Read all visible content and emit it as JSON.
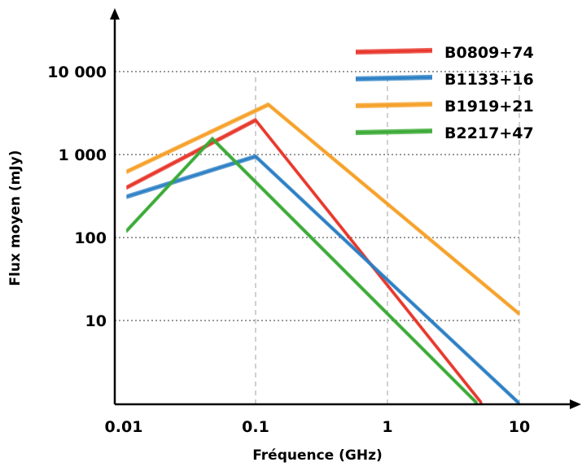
{
  "chart_data": {
    "type": "line",
    "xlabel": "Fréquence (GHz)",
    "ylabel": "Flux moyen (mJy)",
    "xscale": "log",
    "yscale": "log",
    "xlim": [
      0.01,
      20
    ],
    "ylim": [
      1,
      60000
    ],
    "x_ticks": [
      {
        "value": 0.01,
        "label": "0.01"
      },
      {
        "value": 0.1,
        "label": "0.1"
      },
      {
        "value": 1,
        "label": "1"
      },
      {
        "value": 10,
        "label": "10"
      }
    ],
    "y_ticks": [
      {
        "value": 10,
        "label": "10"
      },
      {
        "value": 100,
        "label": "100"
      },
      {
        "value": 1000,
        "label": "1 000"
      },
      {
        "value": 10000,
        "label": "10 000"
      }
    ],
    "grid": true,
    "legend_position": "top-right",
    "series": [
      {
        "name": "B0809+74",
        "color": "#e8352a",
        "points": [
          [
            0.0105,
            400
          ],
          [
            0.1,
            2600
          ],
          [
            5.2,
            1
          ]
        ]
      },
      {
        "name": "B1133+16",
        "color": "#2b7fc4",
        "points": [
          [
            0.0105,
            310
          ],
          [
            0.1,
            950
          ],
          [
            10,
            1
          ]
        ]
      },
      {
        "name": "B1919+21",
        "color": "#f5a027",
        "points": [
          [
            0.0105,
            620
          ],
          [
            0.125,
            4000
          ],
          [
            10,
            12
          ]
        ]
      },
      {
        "name": "B2217+47",
        "color": "#3aaa35",
        "points": [
          [
            0.0105,
            120
          ],
          [
            0.047,
            1550
          ],
          [
            4.8,
            1
          ]
        ]
      }
    ]
  }
}
